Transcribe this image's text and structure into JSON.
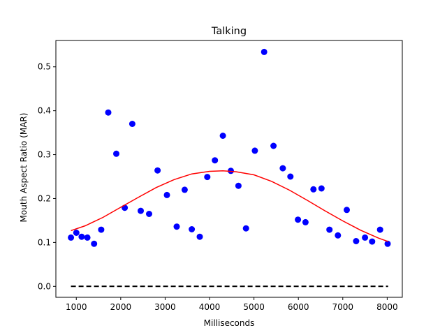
{
  "chart_data": {
    "type": "scatter",
    "title": "Talking",
    "xlabel": "Milliseconds",
    "ylabel": "Mouth Aspect Ratio (MAR)",
    "xlim": [
      540,
      8340
    ],
    "ylim": [
      -0.025,
      0.56
    ],
    "xticks": [
      1000,
      2000,
      3000,
      4000,
      5000,
      6000,
      7000,
      8000
    ],
    "yticks": [
      0.0,
      0.1,
      0.2,
      0.3,
      0.4,
      0.5
    ],
    "grid": false,
    "series": [
      {
        "kind": "points",
        "color": "#0000ff",
        "x": [
          880,
          1000,
          1120,
          1250,
          1400,
          1560,
          1720,
          1900,
          2090,
          2260,
          2450,
          2640,
          2830,
          3040,
          3260,
          3440,
          3600,
          3780,
          3950,
          4120,
          4300,
          4480,
          4650,
          4820,
          5020,
          5230,
          5440,
          5650,
          5820,
          5990,
          6160,
          6340,
          6520,
          6700,
          6890,
          7090,
          7300,
          7500,
          7660,
          7840,
          8010
        ],
        "y": [
          0.111,
          0.122,
          0.113,
          0.111,
          0.097,
          0.129,
          0.396,
          0.302,
          0.179,
          0.37,
          0.172,
          0.165,
          0.264,
          0.208,
          0.136,
          0.22,
          0.13,
          0.113,
          0.249,
          0.287,
          0.343,
          0.263,
          0.229,
          0.132,
          0.309,
          0.534,
          0.32,
          0.269,
          0.25,
          0.152,
          0.146,
          0.221,
          0.223,
          0.129,
          0.116,
          0.174,
          0.103,
          0.111,
          0.102,
          0.129,
          0.097
        ]
      },
      {
        "kind": "curve",
        "color": "#ff0000",
        "x": [
          880,
          1200,
          1600,
          2000,
          2400,
          2800,
          3200,
          3600,
          4000,
          4300,
          4600,
          5000,
          5400,
          5800,
          6200,
          6600,
          7000,
          7400,
          7800,
          8020
        ],
        "y": [
          0.127,
          0.138,
          0.157,
          0.18,
          0.203,
          0.225,
          0.243,
          0.256,
          0.262,
          0.263,
          0.261,
          0.254,
          0.239,
          0.219,
          0.196,
          0.172,
          0.149,
          0.128,
          0.11,
          0.102
        ]
      },
      {
        "kind": "dashed",
        "color": "#000000",
        "x": [
          880,
          8020
        ],
        "y": [
          0.0,
          0.0
        ]
      }
    ]
  }
}
